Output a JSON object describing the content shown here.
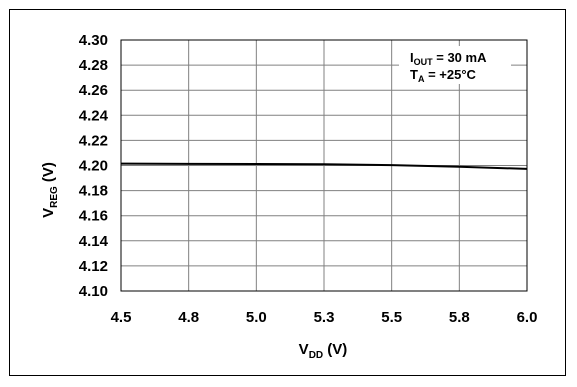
{
  "chart_data": {
    "type": "line",
    "title": "",
    "xlabel": {
      "main": "V",
      "sub": "DD",
      "unit": " (V)"
    },
    "ylabel": {
      "main": "V",
      "sub": "REG",
      "unit": " (V)"
    },
    "xlim": [
      4.5,
      6.0
    ],
    "ylim": [
      4.1,
      4.3
    ],
    "xticks": [
      4.5,
      4.75,
      5.0,
      5.25,
      5.5,
      5.75,
      6.0
    ],
    "xtick_labels": [
      "4.5",
      "4.8",
      "5.0",
      "5.3",
      "5.5",
      "5.8",
      "6.0"
    ],
    "yticks": [
      4.3,
      4.28,
      4.26,
      4.24,
      4.22,
      4.2,
      4.18,
      4.16,
      4.14,
      4.12,
      4.1
    ],
    "ytick_labels": [
      "4.30",
      "4.28",
      "4.26",
      "4.24",
      "4.22",
      "4.20",
      "4.18",
      "4.16",
      "4.14",
      "4.12",
      "4.10"
    ],
    "grid": true,
    "annotations": [
      {
        "main": "I",
        "sub": "OUT",
        "rest": " = 30 mA"
      },
      {
        "main": "T",
        "sub": "A",
        "rest": " = +25°C"
      }
    ],
    "series": [
      {
        "x": [
          4.5,
          4.75,
          5.0,
          5.25,
          5.5,
          5.75,
          6.0
        ],
        "y": [
          4.2015,
          4.2013,
          4.2012,
          4.201,
          4.2003,
          4.199,
          4.1973
        ],
        "color": "#000000"
      }
    ]
  }
}
